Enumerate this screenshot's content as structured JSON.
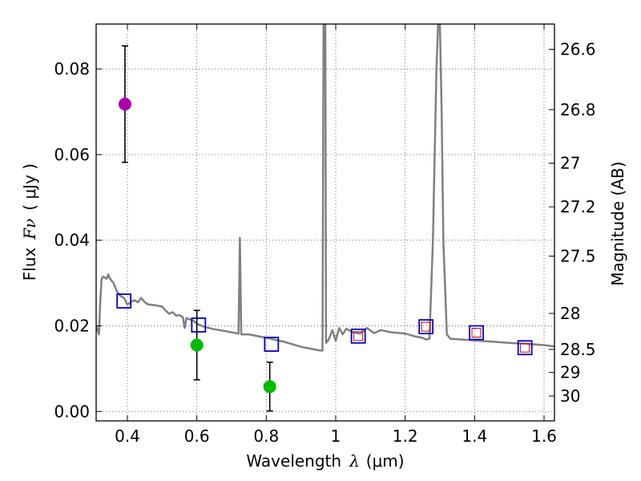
{
  "chart_data": {
    "type": "scatter",
    "xlabel": "Wavelength",
    "xlabel_symbol": "λ",
    "xlabel_unit": "(μm)",
    "ylabel": "Flux",
    "ylabel_symbol": "Fν",
    "ylabel_unit": "( μJy )",
    "y2label": "Magnitude (AB)",
    "xlim": [
      0.31,
      1.63
    ],
    "ylim": [
      -0.0022,
      0.0905
    ],
    "grid": true,
    "x_ticks": [
      0.4,
      0.6,
      0.8,
      1.0,
      1.2,
      1.4,
      1.6
    ],
    "x_tick_labels": [
      "0.4",
      "0.6",
      "0.8",
      "1",
      "1.2",
      "1.4",
      "1.6"
    ],
    "y_ticks": [
      0.0,
      0.02,
      0.04,
      0.06,
      0.08
    ],
    "y_tick_labels": [
      "0.00",
      "0.02",
      "0.04",
      "0.06",
      "0.08"
    ],
    "mag_ticks": [
      {
        "label": "26.6",
        "flux": 0.0846
      },
      {
        "label": "26.8",
        "flux": 0.0705
      },
      {
        "label": "27",
        "flux": 0.058
      },
      {
        "label": "27.2",
        "flux": 0.0478
      },
      {
        "label": "27.5",
        "flux": 0.0363
      },
      {
        "label": "28",
        "flux": 0.0229
      },
      {
        "label": "28.5",
        "flux": 0.0145
      },
      {
        "label": "29",
        "flux": 0.0091
      },
      {
        "label": "30",
        "flux": 0.0036
      }
    ],
    "series": [
      {
        "name": "SED model",
        "kind": "line",
        "color": "#808080",
        "points": [
          [
            0.31,
            0.02
          ],
          [
            0.318,
            0.018
          ],
          [
            0.322,
            0.026
          ],
          [
            0.326,
            0.031
          ],
          [
            0.33,
            0.0315
          ],
          [
            0.34,
            0.031
          ],
          [
            0.345,
            0.032
          ],
          [
            0.35,
            0.031
          ],
          [
            0.36,
            0.03
          ],
          [
            0.37,
            0.028
          ],
          [
            0.38,
            0.027
          ],
          [
            0.39,
            0.0265
          ],
          [
            0.4,
            0.025
          ],
          [
            0.41,
            0.0255
          ],
          [
            0.42,
            0.026
          ],
          [
            0.43,
            0.0255
          ],
          [
            0.44,
            0.0265
          ],
          [
            0.45,
            0.0255
          ],
          [
            0.46,
            0.025
          ],
          [
            0.48,
            0.0248
          ],
          [
            0.5,
            0.0245
          ],
          [
            0.51,
            0.0236
          ],
          [
            0.52,
            0.0228
          ],
          [
            0.53,
            0.0232
          ],
          [
            0.54,
            0.0224
          ],
          [
            0.55,
            0.0225
          ],
          [
            0.56,
            0.022
          ],
          [
            0.565,
            0.0195
          ],
          [
            0.57,
            0.0218
          ],
          [
            0.59,
            0.0212
          ],
          [
            0.6,
            0.0205
          ],
          [
            0.62,
            0.0198
          ],
          [
            0.65,
            0.0192
          ],
          [
            0.68,
            0.0188
          ],
          [
            0.7,
            0.0185
          ],
          [
            0.72,
            0.0182
          ],
          [
            0.724,
            0.0406
          ],
          [
            0.728,
            0.018
          ],
          [
            0.75,
            0.018
          ],
          [
            0.8,
            0.0172
          ],
          [
            0.85,
            0.0163
          ],
          [
            0.9,
            0.0151
          ],
          [
            0.95,
            0.0143
          ],
          [
            0.962,
            0.0142
          ],
          [
            0.965,
            0.0905
          ],
          [
            0.97,
            0.0905
          ],
          [
            0.972,
            0.016
          ],
          [
            0.98,
            0.0168
          ],
          [
            0.99,
            0.019
          ],
          [
            1.0,
            0.0165
          ],
          [
            1.01,
            0.0195
          ],
          [
            1.02,
            0.018
          ],
          [
            1.03,
            0.0193
          ],
          [
            1.05,
            0.0185
          ],
          [
            1.07,
            0.0182
          ],
          [
            1.09,
            0.0195
          ],
          [
            1.11,
            0.0183
          ],
          [
            1.13,
            0.019
          ],
          [
            1.16,
            0.0185
          ],
          [
            1.2,
            0.0182
          ],
          [
            1.23,
            0.0175
          ],
          [
            1.25,
            0.0172
          ],
          [
            1.26,
            0.0168
          ],
          [
            1.27,
            0.017
          ],
          [
            1.28,
            0.04
          ],
          [
            1.29,
            0.08
          ],
          [
            1.295,
            0.0905
          ],
          [
            1.3,
            0.0905
          ],
          [
            1.305,
            0.07
          ],
          [
            1.31,
            0.04
          ],
          [
            1.32,
            0.018
          ],
          [
            1.33,
            0.017
          ],
          [
            1.4,
            0.0166
          ],
          [
            1.5,
            0.016
          ],
          [
            1.55,
            0.0158
          ],
          [
            1.6,
            0.0155
          ],
          [
            1.63,
            0.0152
          ]
        ]
      },
      {
        "name": "Model bands",
        "kind": "blue-squares",
        "color": "#0000cc",
        "x": [
          0.39,
          0.605,
          0.815,
          1.065,
          1.26,
          1.405,
          1.545
        ],
        "y": [
          0.0258,
          0.0202,
          0.0157,
          0.0176,
          0.0198,
          0.0184,
          0.0149
        ]
      },
      {
        "name": "Model bands (red)",
        "kind": "red-squares",
        "color": "#cc0000",
        "x": [
          1.065,
          1.26,
          1.405,
          1.545
        ],
        "y": [
          0.0176,
          0.0198,
          0.0184,
          0.0149
        ]
      },
      {
        "name": "Detections",
        "kind": "points",
        "color": "#00bb00",
        "x": [
          0.6,
          0.81
        ],
        "y": [
          0.0155,
          0.0058
        ],
        "yerr": [
          0.0081,
          0.0057
        ]
      },
      {
        "name": "Detection (violet)",
        "kind": "points",
        "color": "#aa00aa",
        "x": [
          0.393
        ],
        "y": [
          0.0718
        ],
        "yerr": [
          0.0136
        ]
      }
    ]
  }
}
